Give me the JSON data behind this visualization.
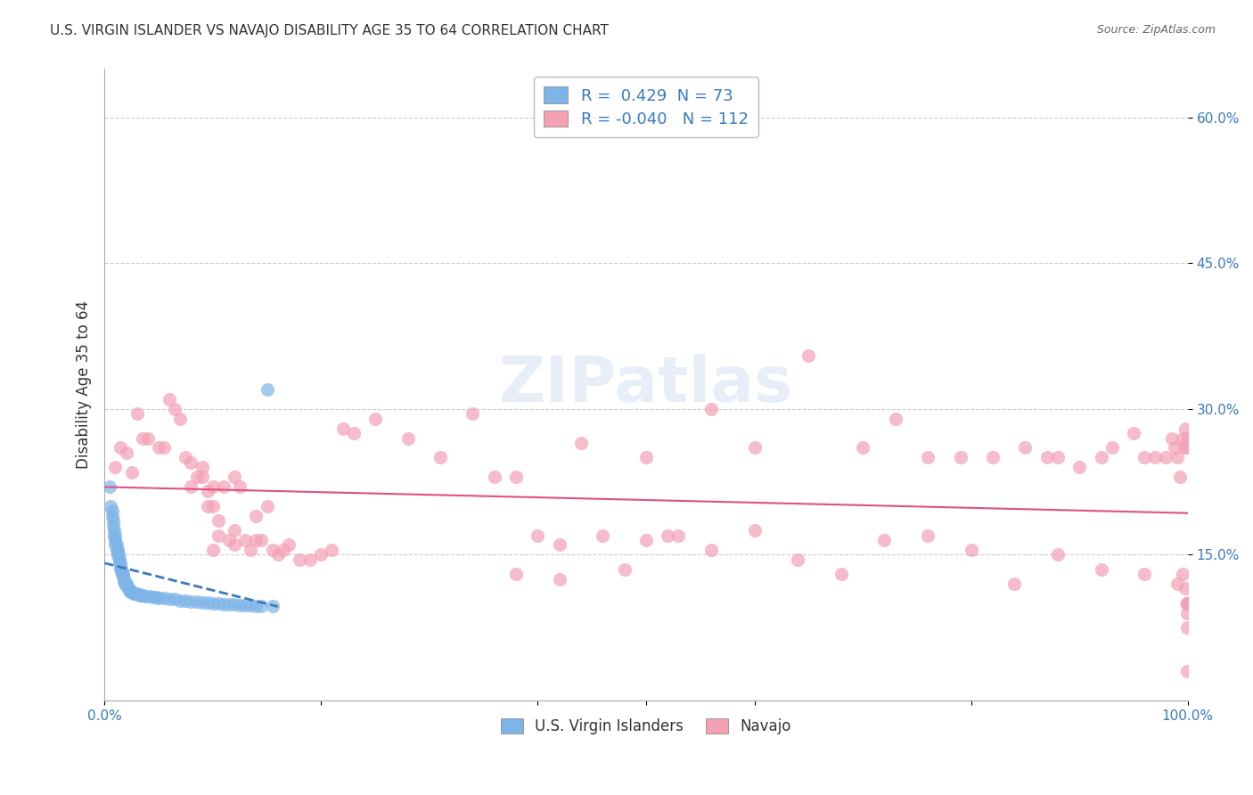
{
  "title": "U.S. VIRGIN ISLANDER VS NAVAJO DISABILITY AGE 35 TO 64 CORRELATION CHART",
  "source": "Source: ZipAtlas.com",
  "xlabel_bottom": "",
  "ylabel": "Disability Age 35 to 64",
  "xlim": [
    0.0,
    1.0
  ],
  "ylim": [
    0.0,
    0.65
  ],
  "x_ticks": [
    0.0,
    0.2,
    0.4,
    0.6,
    0.8,
    1.0
  ],
  "x_tick_labels": [
    "0.0%",
    "",
    "",
    "",
    "",
    "100.0%"
  ],
  "y_ticks": [
    0.15,
    0.3,
    0.45,
    0.6
  ],
  "y_tick_labels": [
    "15.0%",
    "30.0%",
    "45.0%",
    "60.0%"
  ],
  "legend1_R": "0.429",
  "legend1_N": "73",
  "legend2_R": "-0.040",
  "legend2_N": "112",
  "blue_color": "#7eb5e8",
  "pink_color": "#f4a0b5",
  "blue_line_color": "#3a7abf",
  "pink_line_color": "#e05080",
  "watermark": "ZIPatlas",
  "title_fontsize": 11,
  "blue_scatter_x": [
    0.005,
    0.006,
    0.007,
    0.007,
    0.008,
    0.008,
    0.009,
    0.009,
    0.01,
    0.01,
    0.01,
    0.011,
    0.011,
    0.012,
    0.012,
    0.013,
    0.013,
    0.014,
    0.014,
    0.015,
    0.015,
    0.015,
    0.016,
    0.016,
    0.017,
    0.017,
    0.018,
    0.018,
    0.019,
    0.019,
    0.02,
    0.02,
    0.021,
    0.022,
    0.022,
    0.023,
    0.024,
    0.024,
    0.025,
    0.026,
    0.027,
    0.028,
    0.03,
    0.031,
    0.033,
    0.033,
    0.035,
    0.038,
    0.042,
    0.045,
    0.048,
    0.05,
    0.055,
    0.06,
    0.065,
    0.07,
    0.075,
    0.08,
    0.085,
    0.09,
    0.095,
    0.1,
    0.105,
    0.11,
    0.115,
    0.12,
    0.125,
    0.13,
    0.135,
    0.14,
    0.145,
    0.15,
    0.155
  ],
  "blue_scatter_y": [
    0.22,
    0.2,
    0.195,
    0.19,
    0.185,
    0.18,
    0.175,
    0.17,
    0.17,
    0.165,
    0.16,
    0.16,
    0.155,
    0.155,
    0.15,
    0.15,
    0.148,
    0.145,
    0.142,
    0.14,
    0.138,
    0.135,
    0.133,
    0.13,
    0.13,
    0.128,
    0.125,
    0.123,
    0.122,
    0.12,
    0.12,
    0.118,
    0.117,
    0.115,
    0.115,
    0.114,
    0.113,
    0.112,
    0.112,
    0.111,
    0.11,
    0.11,
    0.11,
    0.109,
    0.109,
    0.108,
    0.108,
    0.107,
    0.107,
    0.106,
    0.106,
    0.105,
    0.105,
    0.104,
    0.104,
    0.103,
    0.103,
    0.102,
    0.102,
    0.101,
    0.101,
    0.1,
    0.1,
    0.099,
    0.099,
    0.099,
    0.098,
    0.098,
    0.098,
    0.097,
    0.097,
    0.32,
    0.097
  ],
  "pink_scatter_x": [
    0.01,
    0.015,
    0.02,
    0.025,
    0.03,
    0.035,
    0.04,
    0.05,
    0.055,
    0.06,
    0.065,
    0.07,
    0.075,
    0.08,
    0.08,
    0.085,
    0.09,
    0.09,
    0.095,
    0.095,
    0.1,
    0.1,
    0.105,
    0.105,
    0.11,
    0.115,
    0.12,
    0.12,
    0.125,
    0.13,
    0.135,
    0.14,
    0.145,
    0.15,
    0.155,
    0.16,
    0.165,
    0.17,
    0.18,
    0.19,
    0.2,
    0.21,
    0.22,
    0.23,
    0.25,
    0.28,
    0.31,
    0.34,
    0.36,
    0.38,
    0.4,
    0.42,
    0.44,
    0.46,
    0.5,
    0.53,
    0.56,
    0.6,
    0.65,
    0.7,
    0.73,
    0.76,
    0.79,
    0.82,
    0.85,
    0.87,
    0.88,
    0.9,
    0.92,
    0.93,
    0.95,
    0.96,
    0.97,
    0.98,
    0.985,
    0.988,
    0.99,
    0.993,
    0.995,
    0.997,
    0.998,
    0.999,
    0.999,
    0.1,
    0.12,
    0.14,
    0.38,
    0.42,
    0.48,
    0.5,
    0.52,
    0.56,
    0.6,
    0.64,
    0.68,
    0.72,
    0.76,
    0.8,
    0.84,
    0.88,
    0.92,
    0.96,
    0.99,
    0.995,
    0.998,
    0.999,
    0.999,
    0.999,
    0.999,
    0.999,
    0.999,
    0.999
  ],
  "pink_scatter_y": [
    0.24,
    0.26,
    0.255,
    0.235,
    0.295,
    0.27,
    0.27,
    0.26,
    0.26,
    0.31,
    0.3,
    0.29,
    0.25,
    0.245,
    0.22,
    0.23,
    0.23,
    0.24,
    0.215,
    0.2,
    0.22,
    0.2,
    0.185,
    0.17,
    0.22,
    0.165,
    0.23,
    0.175,
    0.22,
    0.165,
    0.155,
    0.19,
    0.165,
    0.2,
    0.155,
    0.15,
    0.155,
    0.16,
    0.145,
    0.145,
    0.15,
    0.155,
    0.28,
    0.275,
    0.29,
    0.27,
    0.25,
    0.295,
    0.23,
    0.23,
    0.17,
    0.16,
    0.265,
    0.17,
    0.25,
    0.17,
    0.3,
    0.26,
    0.355,
    0.26,
    0.29,
    0.25,
    0.25,
    0.25,
    0.26,
    0.25,
    0.25,
    0.24,
    0.25,
    0.26,
    0.275,
    0.25,
    0.25,
    0.25,
    0.27,
    0.26,
    0.25,
    0.23,
    0.27,
    0.26,
    0.28,
    0.27,
    0.26,
    0.155,
    0.16,
    0.165,
    0.13,
    0.125,
    0.135,
    0.165,
    0.17,
    0.155,
    0.175,
    0.145,
    0.13,
    0.165,
    0.17,
    0.155,
    0.12,
    0.15,
    0.135,
    0.13,
    0.12,
    0.13,
    0.115,
    0.1,
    0.09,
    0.1,
    0.075,
    0.03,
    0.1,
    0.1
  ]
}
